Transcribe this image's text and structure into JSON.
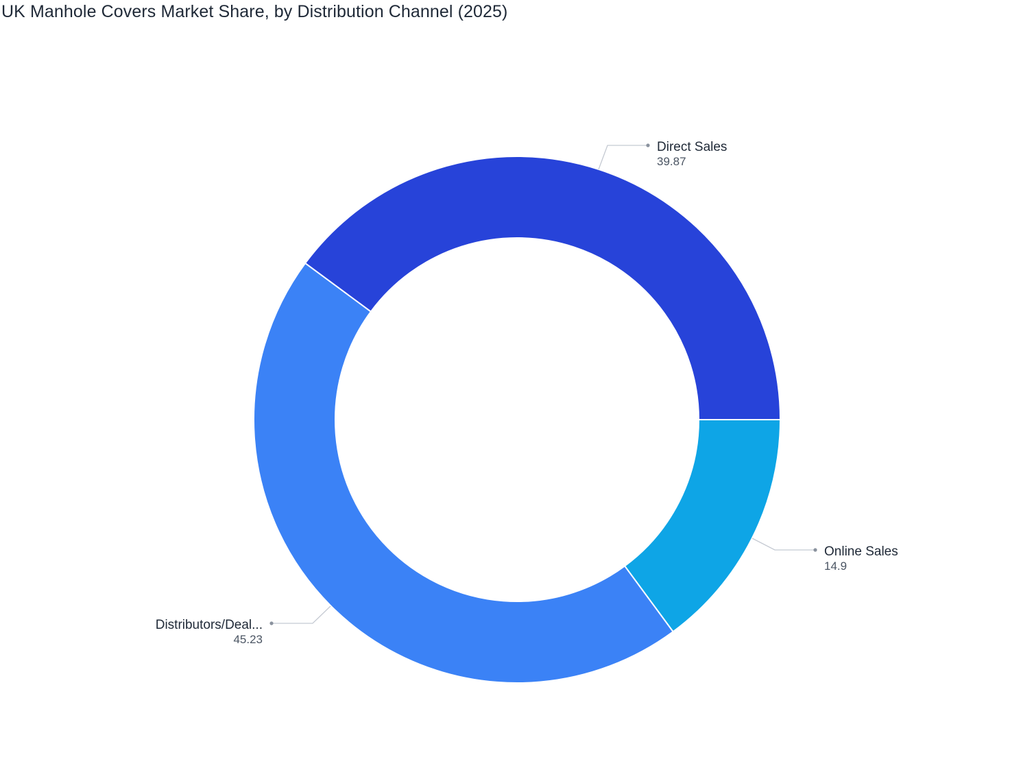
{
  "chart_data": {
    "type": "pie",
    "title": "UK Manhole Covers Market Share, by Distribution Channel (2025)",
    "donut": true,
    "slices": [
      {
        "label": "Direct Sales",
        "display_label": "Direct Sales",
        "value": 39.87,
        "value_label": "39.87",
        "color": "#2743d9"
      },
      {
        "label": "Online Sales",
        "display_label": "Online Sales",
        "value": 14.9,
        "value_label": "14.9",
        "color": "#0ea5e6"
      },
      {
        "label": "Distributors/Dealers",
        "display_label": "Distributors/Deal...",
        "value": 45.23,
        "value_label": "45.23",
        "color": "#3b82f6"
      }
    ],
    "legend": "none"
  },
  "colors": {
    "leader_line": "#c4c9d2",
    "leader_dot": "#8a929e",
    "slice_border": "#ffffff"
  }
}
